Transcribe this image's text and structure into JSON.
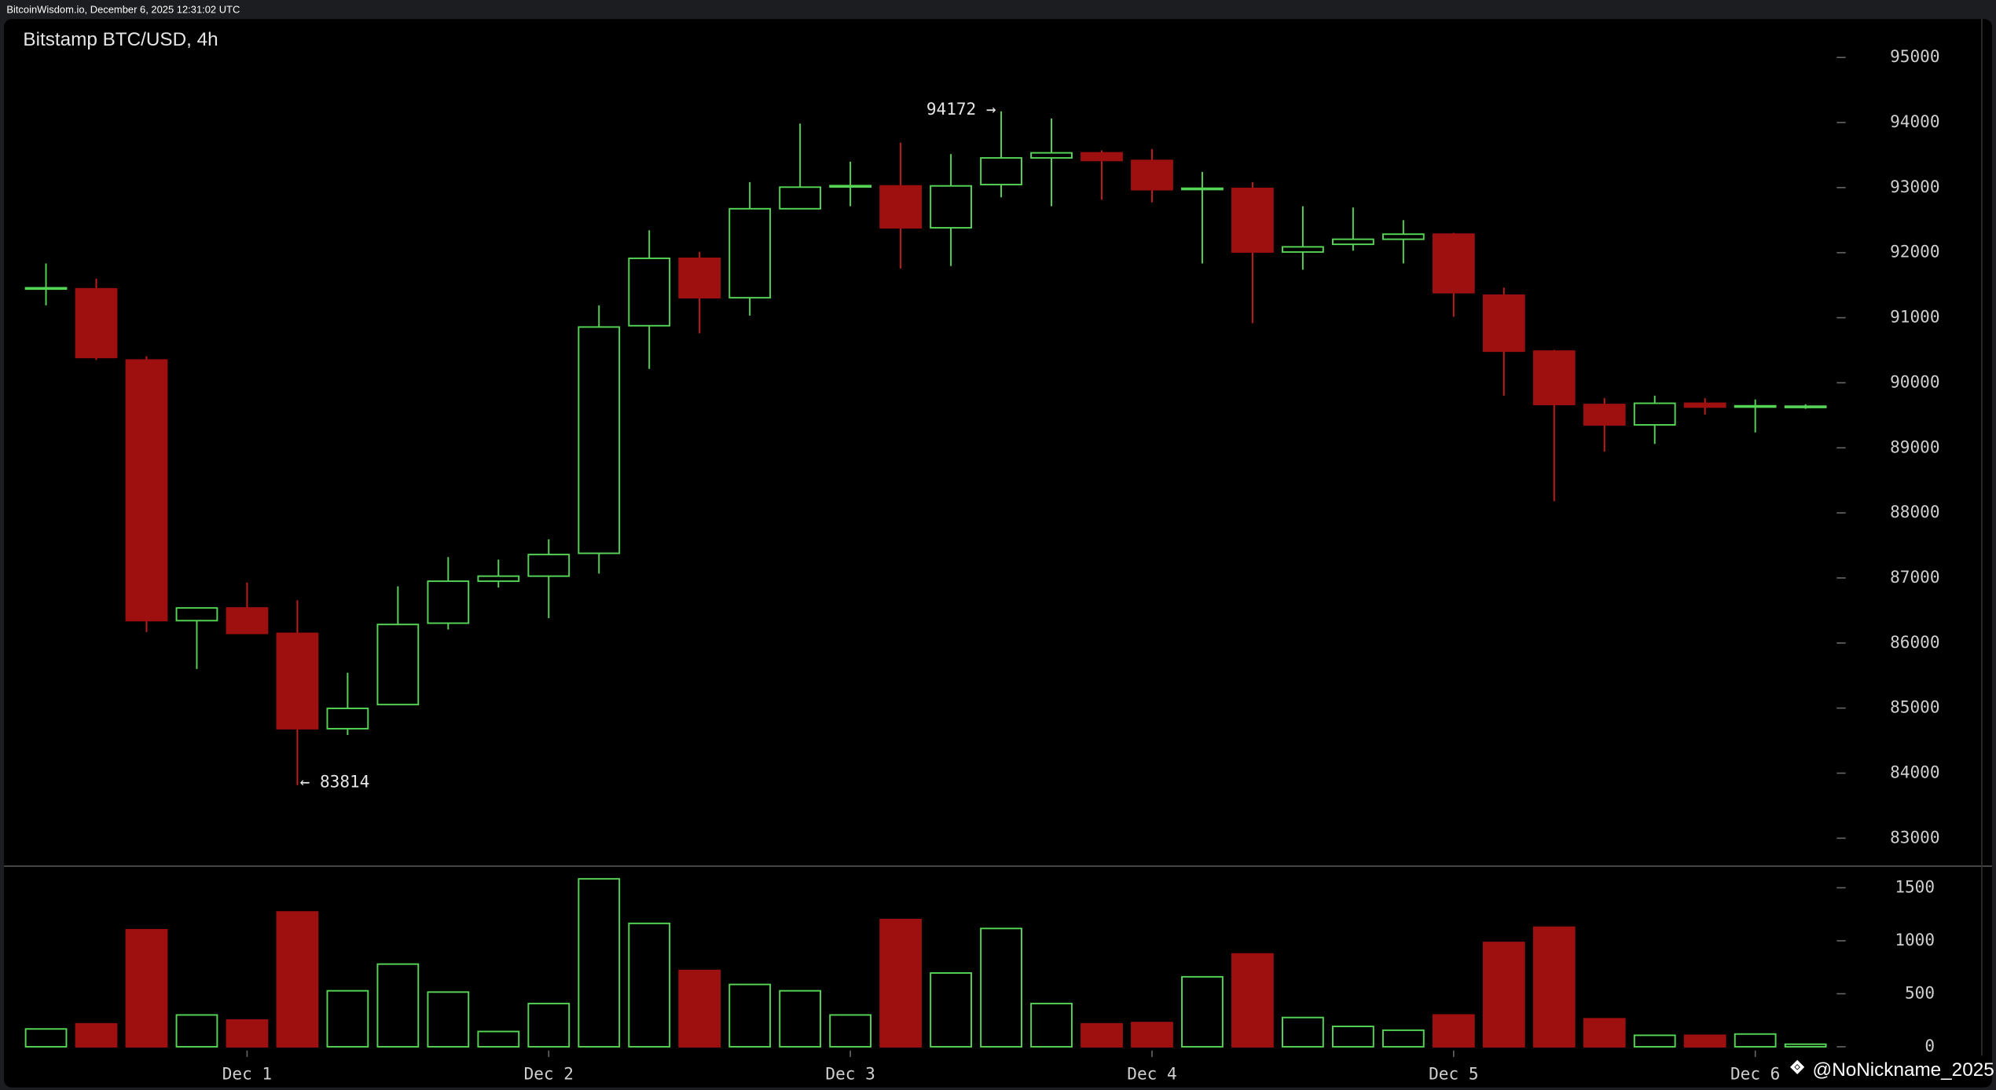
{
  "header": "BitcoinWisdom.io, December 6, 2025 12:31:02 UTC",
  "watermark": "@NoNickname_2025",
  "chart_data": {
    "type": "candlestick",
    "title": "Bitstamp BTC/USD, 4h",
    "categories": [
      null,
      null,
      null,
      null,
      "Dec 1",
      null,
      null,
      null,
      null,
      null,
      "Dec 2",
      null,
      null,
      null,
      null,
      null,
      "Dec 3",
      null,
      null,
      null,
      null,
      null,
      "Dec 4",
      null,
      null,
      null,
      null,
      null,
      "Dec 5",
      null,
      null,
      null,
      null,
      null,
      "Dec 6",
      null
    ],
    "open": [
      91440,
      91444,
      90350,
      86344,
      86539,
      86148,
      84683,
      85054,
      86305,
      86950,
      87028,
      87379,
      90877,
      91913,
      91307,
      92675,
      93010,
      93026,
      92382,
      93046,
      93456,
      93534,
      93417,
      92970,
      92987,
      92010,
      92128,
      92206,
      92284,
      91346,
      90486,
      89666,
      89353,
      89685,
      89627,
      89630
    ],
    "high": [
      91834,
      91600,
      90408,
      86539,
      86930,
      86657,
      85543,
      86871,
      87321,
      87282,
      87594,
      91190,
      92343,
      92010,
      93085,
      93984,
      93398,
      93691,
      93515,
      94172,
      94062,
      93573,
      93593,
      93241,
      93085,
      92714,
      92694,
      92499,
      92304,
      91463,
      90506,
      89763,
      89802,
      89763,
      89743,
      89670
    ],
    "low": [
      91190,
      90350,
      86168,
      85601,
      86148,
      83814,
      84585,
      85054,
      86207,
      86852,
      86383,
      87067,
      90213,
      90760,
      91033,
      92675,
      92714,
      91756,
      91795,
      92850,
      92714,
      92812,
      92772,
      91834,
      90916,
      91737,
      92030,
      91834,
      91014,
      89802,
      88180,
      88943,
      89060,
      89509,
      89236,
      89600
    ],
    "close": [
      91460,
      90389,
      86344,
      86539,
      86148,
      84683,
      84995,
      86285,
      86950,
      87028,
      87360,
      90857,
      91913,
      91307,
      92675,
      93007,
      93030,
      92382,
      93026,
      93456,
      93534,
      93417,
      92968,
      92990,
      92010,
      92089,
      92206,
      92284,
      91385,
      90486,
      89666,
      89353,
      89685,
      89627,
      89646,
      89640
    ],
    "volume": [
      168,
      216,
      1104,
      300,
      252,
      1272,
      528,
      780,
      516,
      144,
      408,
      1584,
      1164,
      720,
      588,
      528,
      300,
      1200,
      696,
      1116,
      408,
      216,
      228,
      660,
      876,
      276,
      192,
      156,
      300,
      984,
      1128,
      264,
      108,
      108,
      120,
      24
    ],
    "ylim": [
      82590,
      95590
    ],
    "yticks": [
      83000,
      84000,
      85000,
      86000,
      87000,
      88000,
      89000,
      90000,
      91000,
      92000,
      93000,
      94000,
      95000
    ],
    "volume_ylim": [
      0,
      1680
    ],
    "volume_yticks": [
      0,
      500,
      1000,
      1500
    ],
    "high_label": "94172 →",
    "low_label": "← 83814",
    "up_color": "#55d455",
    "down_color": "#9e1010"
  }
}
